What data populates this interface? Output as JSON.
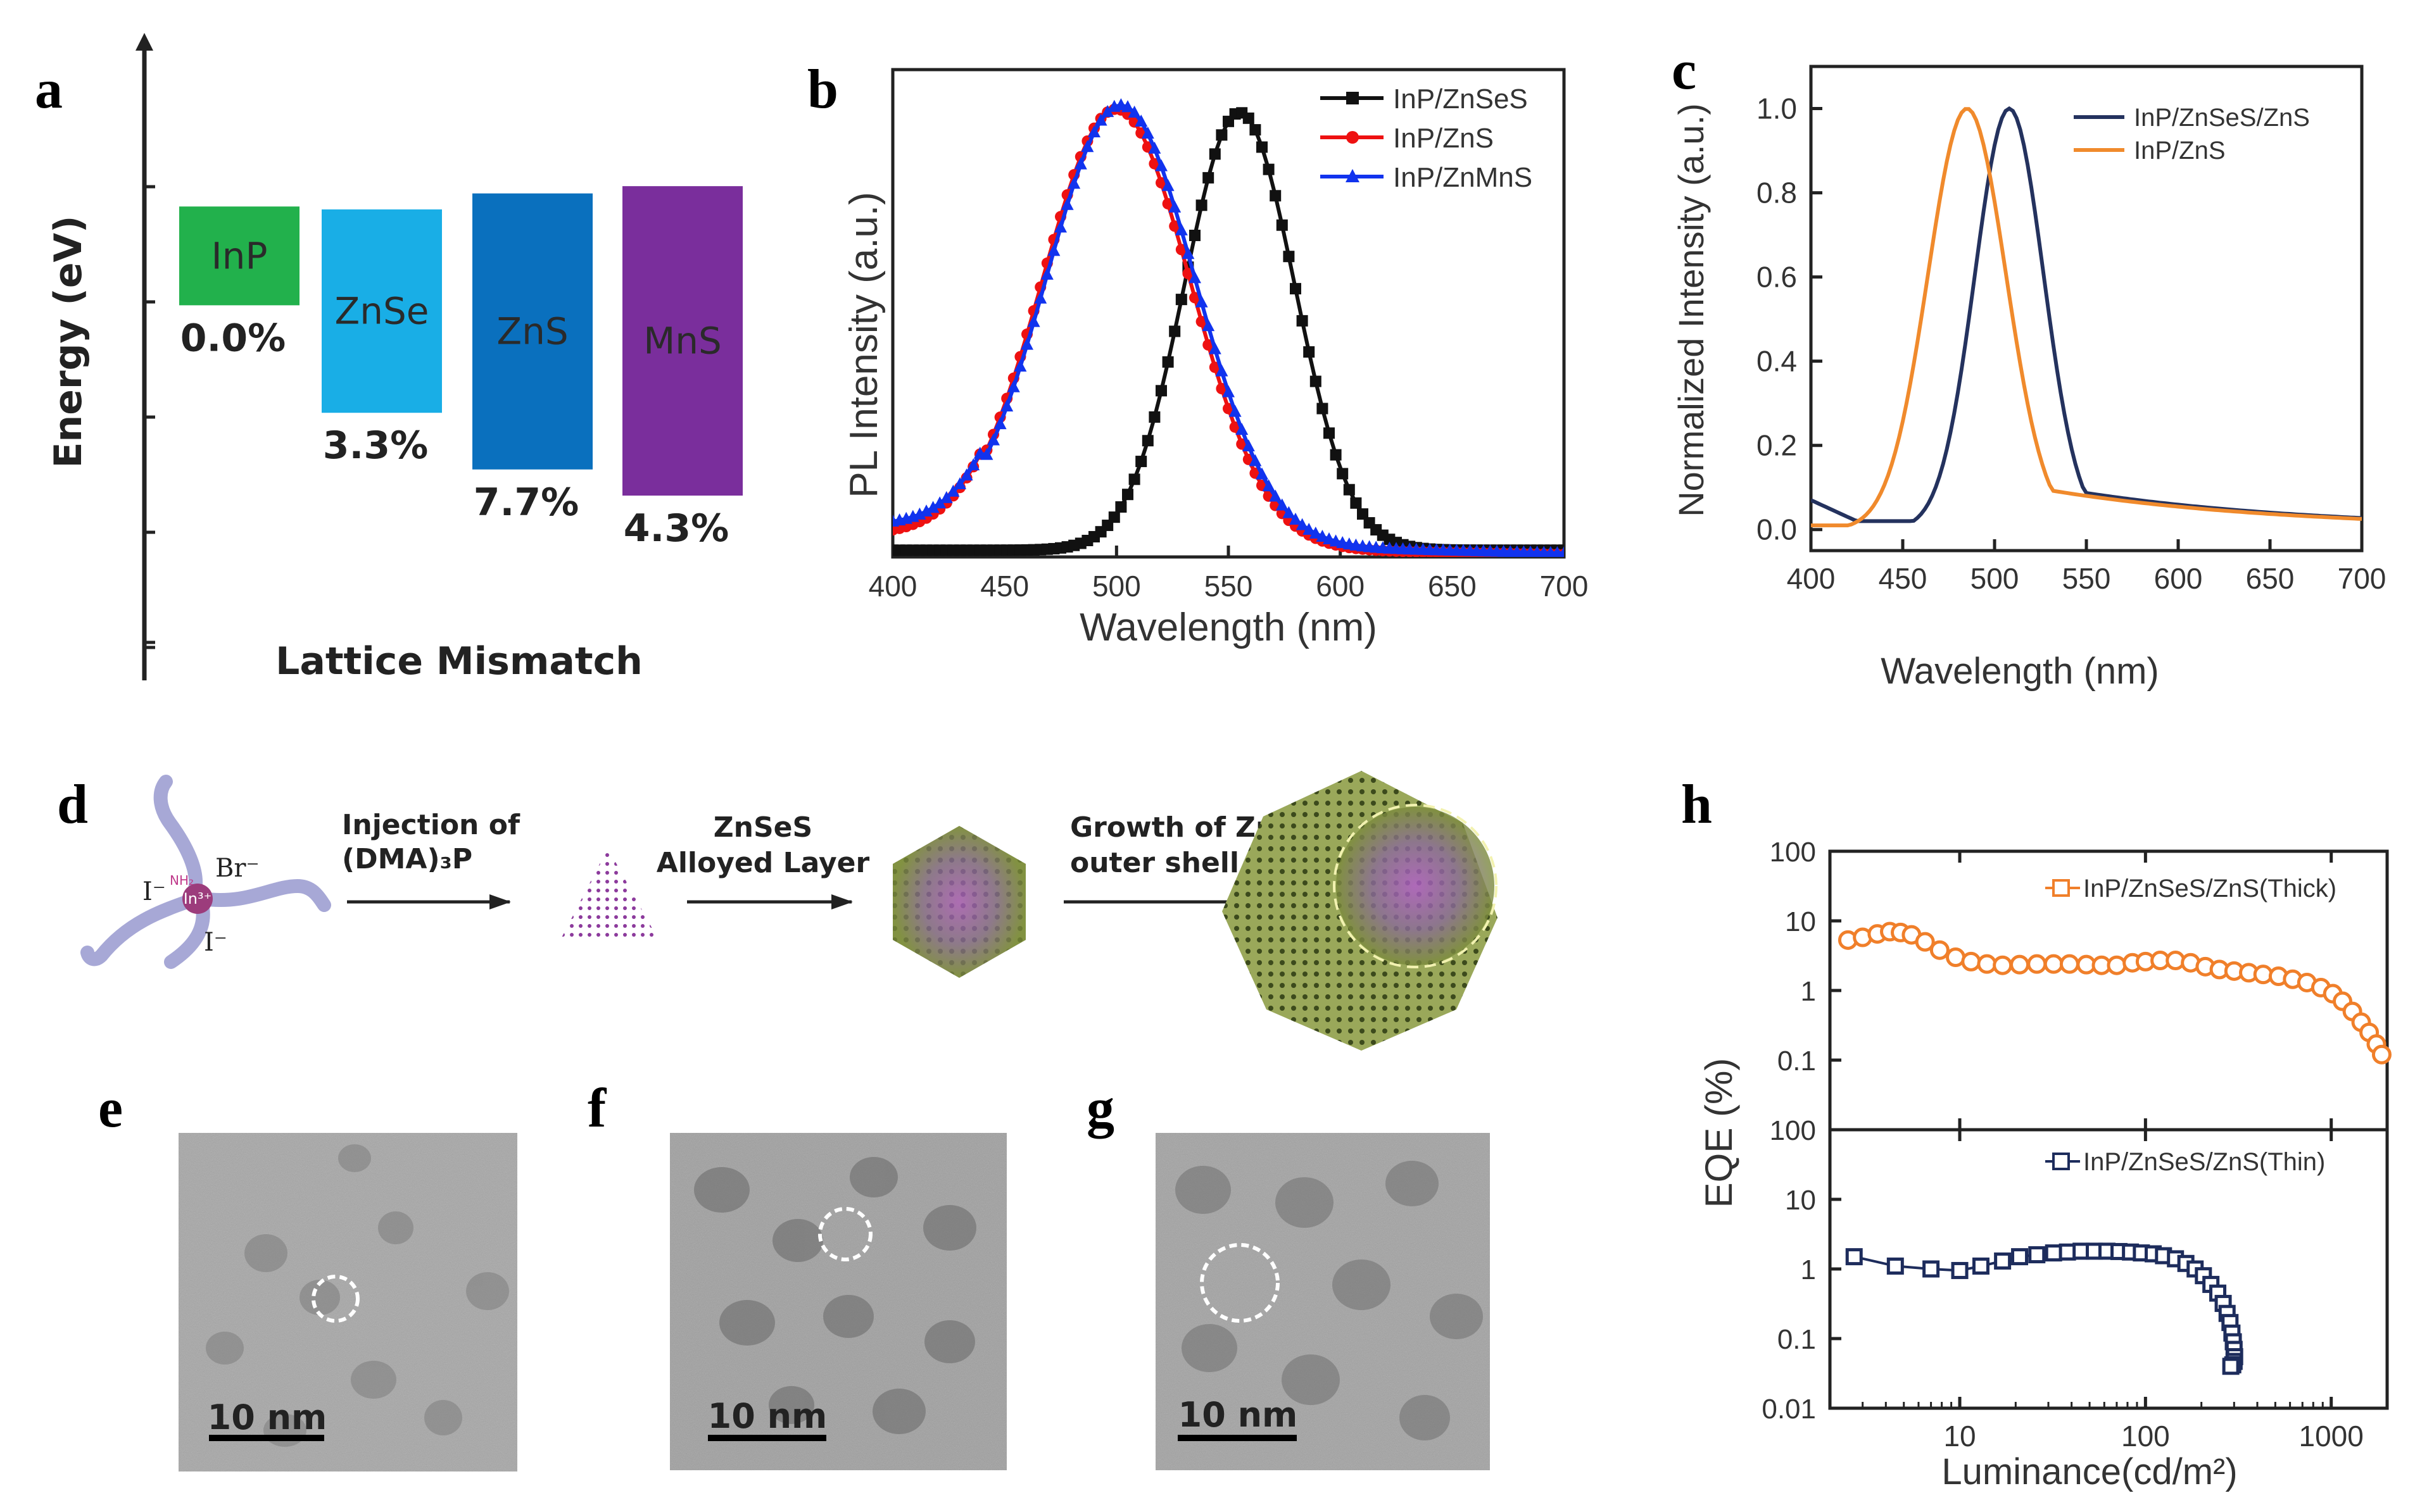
{
  "panels": {
    "a": "a",
    "b": "b",
    "c": "c",
    "d": "d",
    "e": "e",
    "f": "f",
    "g": "g",
    "h": "h"
  },
  "chart_data": [
    {
      "id": "a",
      "type": "bar",
      "title": "",
      "ylabel": "Energy (eV)",
      "xlabel": "Lattice Mismatch",
      "categories": [
        "InP",
        "ZnSe",
        "ZnS",
        "MnS"
      ],
      "mismatch_labels": [
        "0.0%",
        "3.3%",
        "7.7%",
        "4.3%"
      ],
      "band_top": [
        0.74,
        0.72,
        0.83,
        0.88
      ],
      "band_bottom": [
        0.06,
        -0.68,
        -1.07,
        -1.25
      ],
      "colors": [
        "#22b14c",
        "#19aee6",
        "#0a70be",
        "#7a2e9c"
      ],
      "ylim": [
        -2.5,
        1.9
      ]
    },
    {
      "id": "b",
      "type": "line",
      "xlabel": "Wavelength (nm)",
      "ylabel": "PL Intensity (a.u.)",
      "xlim": [
        400,
        700
      ],
      "xticks": [
        400,
        450,
        500,
        550,
        600,
        650,
        700
      ],
      "ylim": [
        0,
        1.08
      ],
      "legend_position": "top-right",
      "series": [
        {
          "name": "InP/ZnSeS",
          "color": "#111111",
          "peak": 555,
          "fwhm": 58,
          "baseline": 0.02,
          "marker": "square"
        },
        {
          "name": "InP/ZnS",
          "color": "#ee1111",
          "peak": 500,
          "fwhm": 78,
          "baseline": 0.05,
          "marker": "circle"
        },
        {
          "name": "InP/ZnMnS",
          "color": "#1133ee",
          "peak": 502,
          "fwhm": 78,
          "baseline": 0.07,
          "marker": "triangle"
        }
      ]
    },
    {
      "id": "c",
      "type": "line",
      "xlabel": "Wavelength (nm)",
      "ylabel": "Normalized Intensity (a.u.)",
      "xlim": [
        400,
        700
      ],
      "xticks": [
        400,
        450,
        500,
        550,
        600,
        650,
        700
      ],
      "ylim": [
        -0.05,
        1.1
      ],
      "yticks": [
        0.0,
        0.2,
        0.4,
        0.6,
        0.8,
        1.0
      ],
      "ytick_labels": [
        "0.0",
        "0.2",
        "0.4",
        "0.6",
        "0.8",
        "1.0"
      ],
      "legend_position": "top-right",
      "series": [
        {
          "name": "InP/ZnSeS/ZnS",
          "color": "#24325e",
          "peak": 508,
          "fwhm": 44
        },
        {
          "name": "InP/ZnS",
          "color": "#f08a2c",
          "peak": 485,
          "fwhm": 50
        }
      ]
    },
    {
      "id": "h",
      "type": "scatter",
      "xlabel": "Luminance(cd/m²)",
      "ylabel": "EQE (%)",
      "xscale": "log",
      "xlim": [
        2,
        2000
      ],
      "xticks": [
        10,
        100,
        1000
      ],
      "xtick_labels": [
        "10",
        "100",
        "1000"
      ],
      "yscale": "log",
      "ylim": [
        0.01,
        100
      ],
      "yticks": [
        0.01,
        0.1,
        1,
        10,
        100
      ],
      "ytick_labels": [
        "0.01",
        "0.1",
        "1",
        "10",
        "100"
      ],
      "series": [
        {
          "name": "InP/ZnSeS/ZnS(Thick)",
          "color": "#f07f2a",
          "x": [
            2.5,
            3,
            3.6,
            4.2,
            4.8,
            5.5,
            6.5,
            7.8,
            9.5,
            11.5,
            14,
            17,
            21,
            26,
            32,
            39,
            48,
            58,
            70,
            85,
            100,
            120,
            145,
            175,
            210,
            250,
            300,
            360,
            430,
            520,
            620,
            740,
            880,
            1020,
            1150,
            1300,
            1450,
            1600,
            1750,
            1870
          ],
          "y": [
            5.3,
            5.8,
            6.5,
            7.0,
            6.8,
            6.3,
            5.0,
            3.8,
            3.0,
            2.6,
            2.4,
            2.3,
            2.35,
            2.4,
            2.4,
            2.4,
            2.35,
            2.3,
            2.3,
            2.5,
            2.6,
            2.7,
            2.7,
            2.5,
            2.2,
            2.0,
            1.9,
            1.8,
            1.7,
            1.6,
            1.45,
            1.3,
            1.1,
            0.9,
            0.7,
            0.5,
            0.35,
            0.25,
            0.17,
            0.12
          ]
        },
        {
          "name": "InP/ZnSeS/ZnS(Thin)",
          "color": "#1d2c5c",
          "x": [
            2.7,
            4.5,
            7,
            10,
            13,
            17,
            21,
            26,
            32,
            38,
            45,
            53,
            62,
            72,
            83,
            95,
            110,
            125,
            145,
            165,
            185,
            205,
            225,
            245,
            262,
            275,
            285,
            292,
            297,
            300,
            302,
            300,
            295,
            288
          ],
          "y": [
            1.5,
            1.1,
            1.0,
            0.95,
            1.1,
            1.3,
            1.5,
            1.6,
            1.7,
            1.75,
            1.8,
            1.8,
            1.8,
            1.78,
            1.75,
            1.7,
            1.65,
            1.55,
            1.4,
            1.2,
            1.0,
            0.8,
            0.6,
            0.45,
            0.32,
            0.23,
            0.17,
            0.12,
            0.09,
            0.07,
            0.055,
            0.047,
            0.042,
            0.04
          ]
        }
      ]
    }
  ],
  "schematic_d": {
    "labels": [
      "Injection of",
      "(DMA)₃P",
      "ZnSeS",
      "Alloyed Layer",
      "Growth of ZnS",
      "outer shell"
    ],
    "complex": {
      "center": "In³⁺",
      "br": "Br⁻",
      "i1": "I⁻",
      "i2": "I⁻",
      "nh": "NH₂"
    }
  },
  "tem": [
    {
      "id": "e",
      "scale_label": "10 nm"
    },
    {
      "id": "f",
      "scale_label": "10 nm"
    },
    {
      "id": "g",
      "scale_label": "10 nm"
    }
  ]
}
